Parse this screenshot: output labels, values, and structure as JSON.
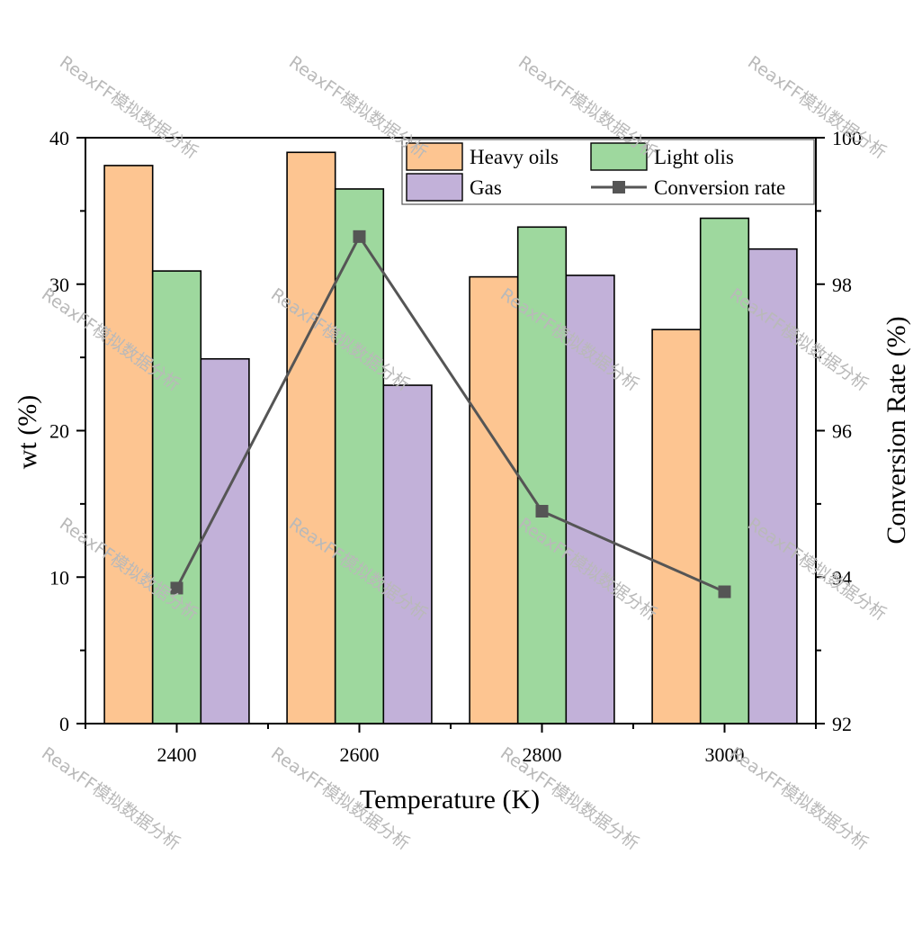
{
  "chart_data": {
    "type": "bar",
    "x_label": "Temperature (K)",
    "y_label": "wt (%)",
    "y2_label": "Conversion Rate (%)",
    "categories": [
      "2400",
      "2600",
      "2800",
      "3000"
    ],
    "y_range": [
      0,
      40
    ],
    "y_ticks": [
      "0",
      "10",
      "20",
      "30",
      "40"
    ],
    "y2_range": [
      92,
      100
    ],
    "y2_ticks": [
      "92",
      "94",
      "96",
      "98",
      "100"
    ],
    "grid": false,
    "legend_position": "top-right",
    "bar_series": [
      {
        "name": "Heavy oils",
        "color": "#fdc591",
        "values": [
          38.1,
          39.0,
          30.5,
          26.9
        ]
      },
      {
        "name": "Light olis",
        "color": "#9ed89e",
        "values": [
          30.9,
          36.5,
          33.9,
          34.5
        ]
      },
      {
        "name": "Gas",
        "color": "#c2b1d9",
        "values": [
          24.9,
          23.1,
          30.6,
          32.4
        ]
      }
    ],
    "line_series": {
      "name": "Conversion rate",
      "color": "#555555",
      "axis": "right",
      "values": [
        93.85,
        98.65,
        94.9,
        93.8
      ]
    }
  },
  "watermark": {
    "text": "ReaxFF模拟数据分析"
  }
}
